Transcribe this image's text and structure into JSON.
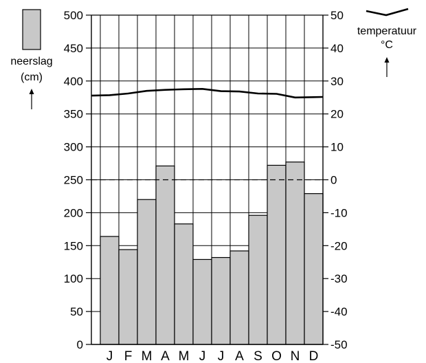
{
  "chart_data": {
    "type": "bar",
    "categories": [
      "J",
      "F",
      "M",
      "A",
      "M",
      "J",
      "J",
      "A",
      "S",
      "O",
      "N",
      "D"
    ],
    "series": [
      {
        "name": "neerslag",
        "kind": "bar",
        "axis": "left",
        "values": [
          164,
          144,
          220,
          271,
          183,
          129,
          132,
          142,
          196,
          272,
          277,
          229
        ]
      },
      {
        "name": "temperatuur",
        "kind": "line",
        "axis": "right",
        "values": [
          25.7,
          26.2,
          27.0,
          27.3,
          27.5,
          27.6,
          26.9,
          26.8,
          26.2,
          26.1,
          25.0,
          25.1
        ]
      }
    ],
    "left_axis": {
      "label_line1": "neerslag",
      "label_line2": "(cm)",
      "ylim": [
        0,
        500
      ],
      "ticks": [
        "0",
        "50",
        "100",
        "150",
        "200",
        "250",
        "300",
        "350",
        "400",
        "450",
        "500"
      ]
    },
    "right_axis": {
      "label_line1": "temperatuur",
      "label_line2": "°C",
      "ylim": [
        -50,
        50
      ],
      "ticks": [
        "-50",
        "-40",
        "-30",
        "-20",
        "-10",
        "0",
        "10",
        "20",
        "30",
        "40",
        "50"
      ]
    },
    "reference_line": {
      "value": 0,
      "axis": "right",
      "style": "dashed"
    },
    "grid": true,
    "colors": {
      "bar_fill": "#c8c8c8",
      "stroke": "#000000",
      "line": "#000000"
    },
    "legend": {
      "precip_swatch": "bar",
      "temp_swatch": "line"
    }
  }
}
